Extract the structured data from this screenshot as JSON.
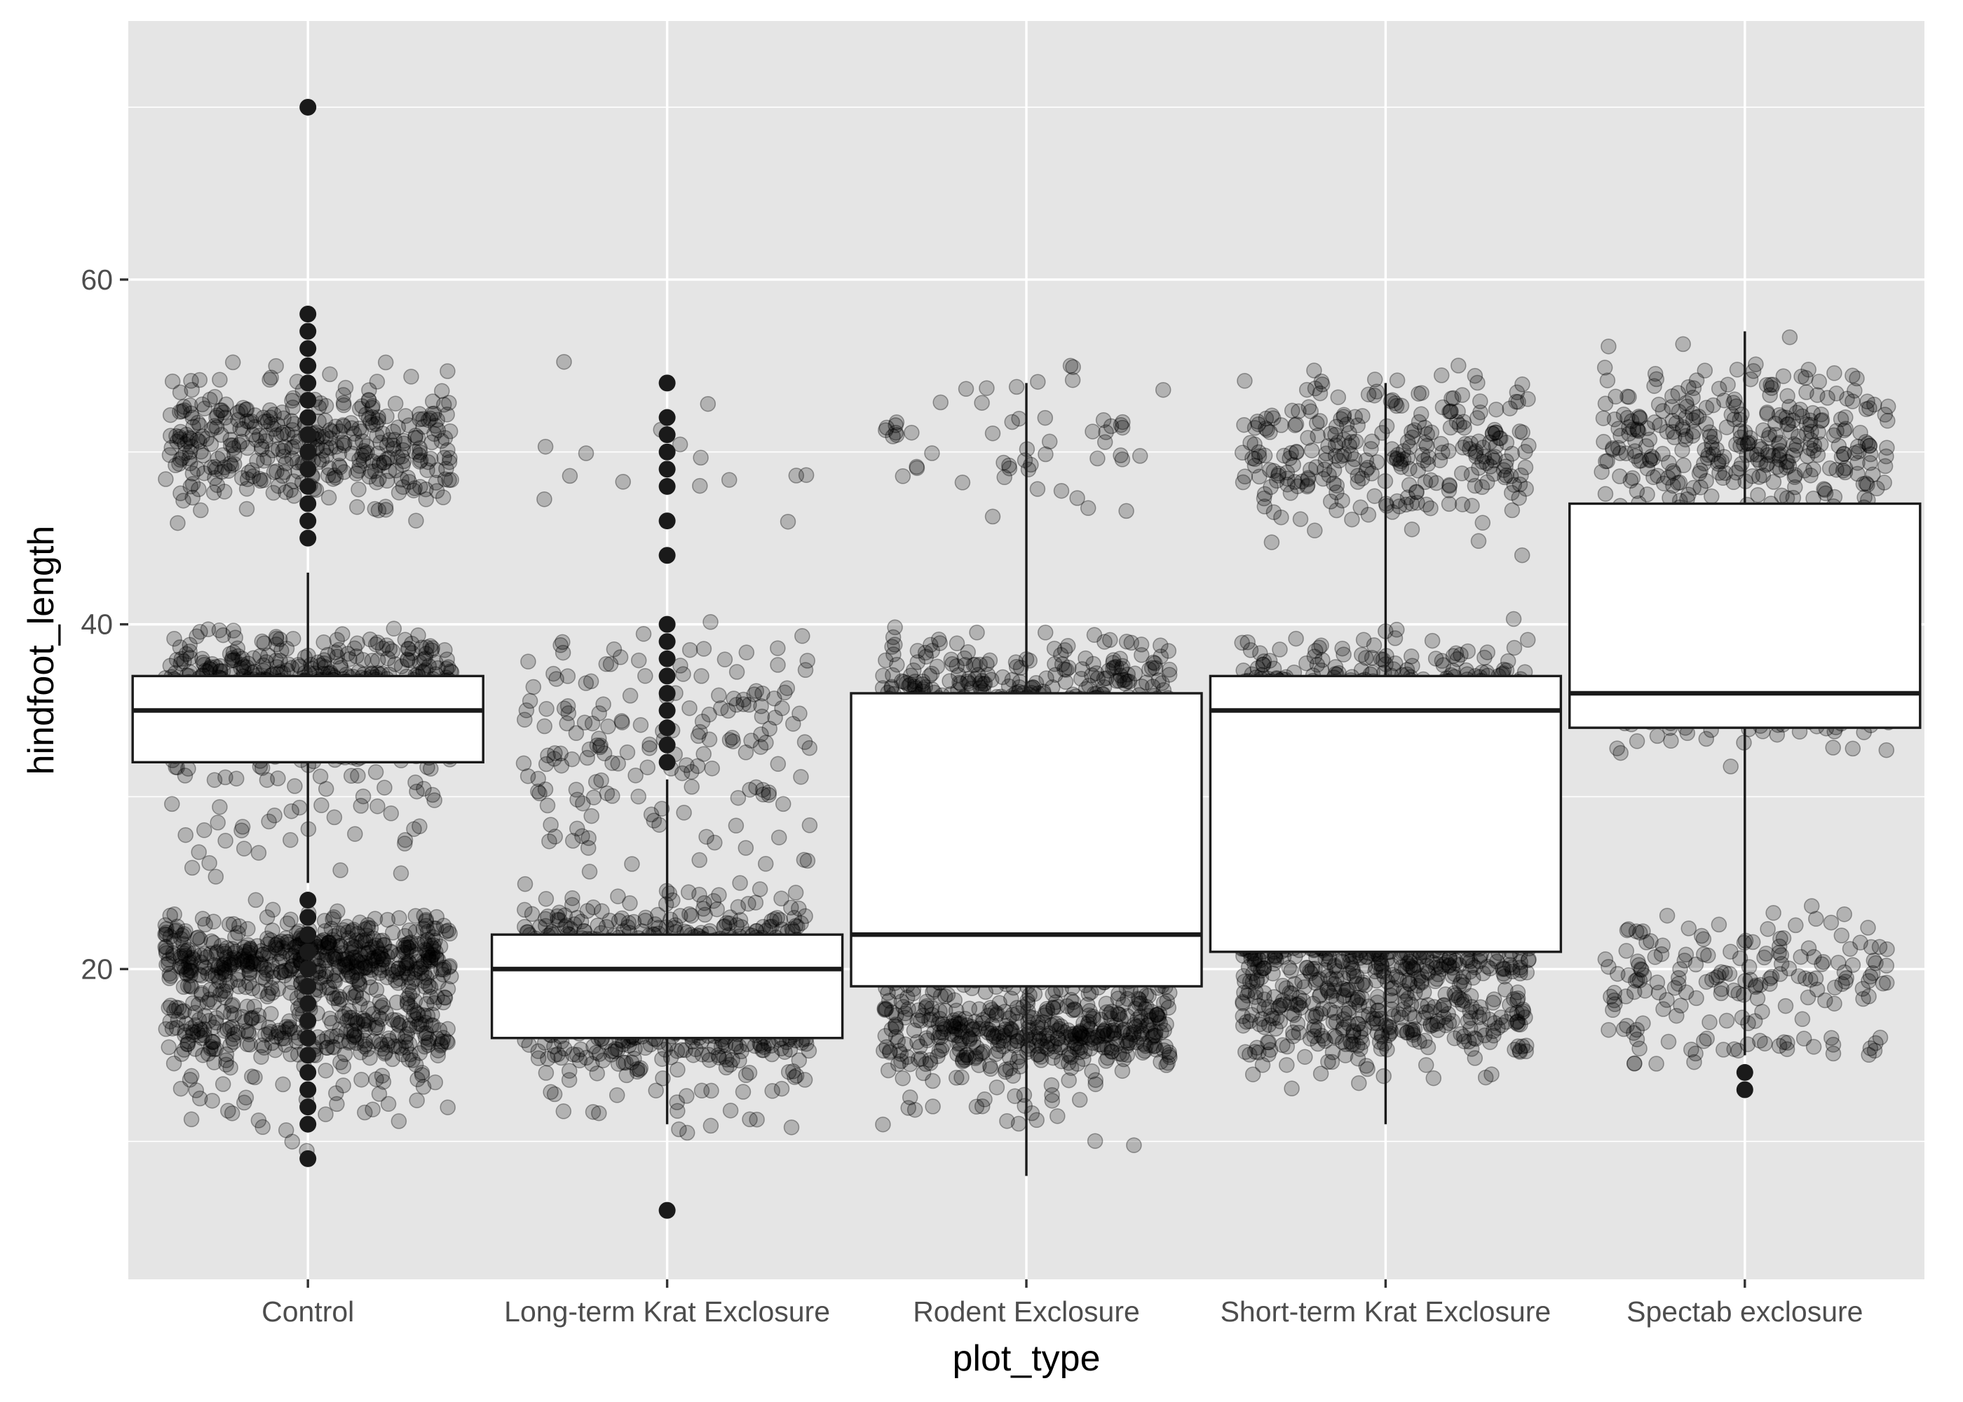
{
  "chart_data": {
    "type": "boxplot",
    "title": "",
    "xlabel": "plot_type",
    "ylabel": "hindfoot_length",
    "ylim": [
      2,
      75
    ],
    "yticks": [
      20,
      40,
      60
    ],
    "grid": true,
    "legend": "none",
    "colors": {
      "panel": "#e5e5e5",
      "grid": "#ffffff",
      "box_fill": "#ffffff",
      "box_line": "#1a1a1a",
      "outlier": "#1a1a1a",
      "jitter": "#000000",
      "tick_text": "#4d4d4d"
    },
    "jitter_alpha": 0.22,
    "categories": [
      "Control",
      "Long-term Krat Exclosure",
      "Rodent Exclosure",
      "Short-term Krat Exclosure",
      "Spectab exclosure"
    ],
    "boxes": [
      {
        "min": 25,
        "q1": 32,
        "median": 35,
        "q3": 37,
        "max": 43,
        "outliers": [
          9,
          11,
          12,
          13,
          14,
          15,
          16,
          17,
          18,
          19,
          20,
          21,
          22,
          23,
          24,
          45,
          46,
          47,
          48,
          49,
          50,
          51,
          52,
          53,
          54,
          55,
          56,
          57,
          58,
          70
        ]
      },
      {
        "min": 11,
        "q1": 16,
        "median": 20,
        "q3": 22,
        "max": 31,
        "outliers": [
          6,
          32,
          33,
          34,
          35,
          36,
          37,
          38,
          39,
          40,
          44,
          46,
          48,
          49,
          50,
          51,
          52,
          54
        ]
      },
      {
        "min": 8,
        "q1": 19,
        "median": 22,
        "q3": 36,
        "max": 54,
        "outliers": []
      },
      {
        "min": 11,
        "q1": 21,
        "median": 35,
        "q3": 37,
        "max": 54,
        "outliers": []
      },
      {
        "min": 15,
        "q1": 34,
        "median": 36,
        "q3": 47,
        "max": 57,
        "outliers": [
          13,
          14
        ]
      }
    ],
    "jitter_clusters": [
      [
        {
          "center": 50.5,
          "spread": 2.0,
          "count": 380
        },
        {
          "center": 35.5,
          "spread": 1.7,
          "count": 950
        },
        {
          "center": 31.0,
          "spread": 3.5,
          "count": 80
        },
        {
          "center": 20.7,
          "spread": 1.1,
          "count": 500
        },
        {
          "center": 16.5,
          "spread": 1.4,
          "count": 300
        },
        {
          "center": 12.5,
          "spread": 1.5,
          "count": 35
        }
      ],
      [
        {
          "center": 50.0,
          "spread": 2.2,
          "count": 15
        },
        {
          "center": 34.5,
          "spread": 2.6,
          "count": 140
        },
        {
          "center": 26.5,
          "spread": 3.0,
          "count": 45
        },
        {
          "center": 21.5,
          "spread": 1.2,
          "count": 330
        },
        {
          "center": 17.0,
          "spread": 1.5,
          "count": 420
        },
        {
          "center": 12.5,
          "spread": 1.2,
          "count": 25
        }
      ],
      [
        {
          "center": 50.5,
          "spread": 2.2,
          "count": 55
        },
        {
          "center": 35.5,
          "spread": 1.7,
          "count": 450
        },
        {
          "center": 27.0,
          "spread": 3.0,
          "count": 25
        },
        {
          "center": 21.0,
          "spread": 1.2,
          "count": 400
        },
        {
          "center": 16.5,
          "spread": 1.2,
          "count": 420
        },
        {
          "center": 12.5,
          "spread": 1.2,
          "count": 30
        }
      ],
      [
        {
          "center": 50.0,
          "spread": 2.2,
          "count": 280
        },
        {
          "center": 35.5,
          "spread": 1.8,
          "count": 500
        },
        {
          "center": 27.0,
          "spread": 3.0,
          "count": 30
        },
        {
          "center": 21.0,
          "spread": 1.2,
          "count": 360
        },
        {
          "center": 17.0,
          "spread": 1.5,
          "count": 300
        }
      ],
      [
        {
          "center": 50.5,
          "spread": 2.2,
          "count": 330
        },
        {
          "center": 36.5,
          "spread": 1.6,
          "count": 400
        },
        {
          "center": 42.0,
          "spread": 2.5,
          "count": 15
        },
        {
          "center": 20.5,
          "spread": 1.5,
          "count": 120
        },
        {
          "center": 16.5,
          "spread": 1.4,
          "count": 60
        }
      ]
    ]
  }
}
